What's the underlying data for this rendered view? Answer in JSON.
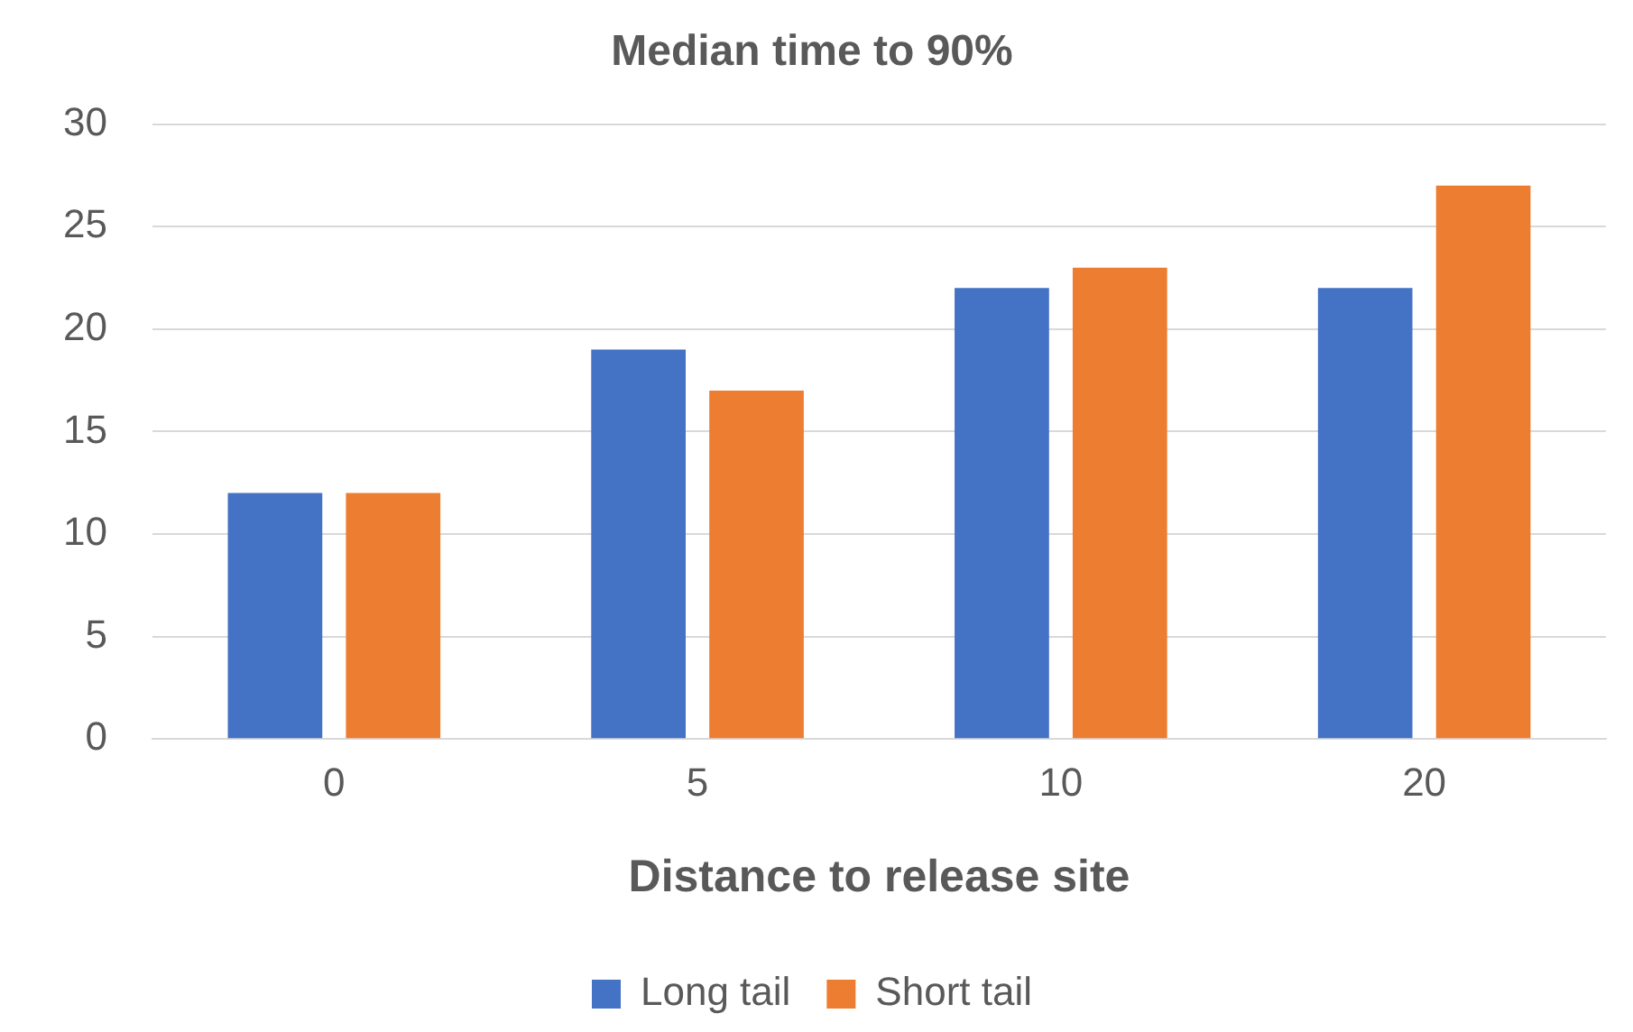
{
  "chart_data": {
    "type": "bar",
    "title": "Median time to 90%",
    "xlabel": "Distance to release site",
    "categories": [
      "0",
      "5",
      "10",
      "20"
    ],
    "series": [
      {
        "name": "Long tail",
        "color": "#4472c4",
        "values": [
          12,
          19,
          22,
          22
        ]
      },
      {
        "name": "Short tail",
        "color": "#ed7d31",
        "values": [
          12,
          17,
          23,
          27
        ]
      }
    ],
    "ylim": [
      0,
      30
    ],
    "yticks": [
      0,
      5,
      10,
      15,
      20,
      25,
      30
    ],
    "grid": "y",
    "legend": "bottom"
  }
}
